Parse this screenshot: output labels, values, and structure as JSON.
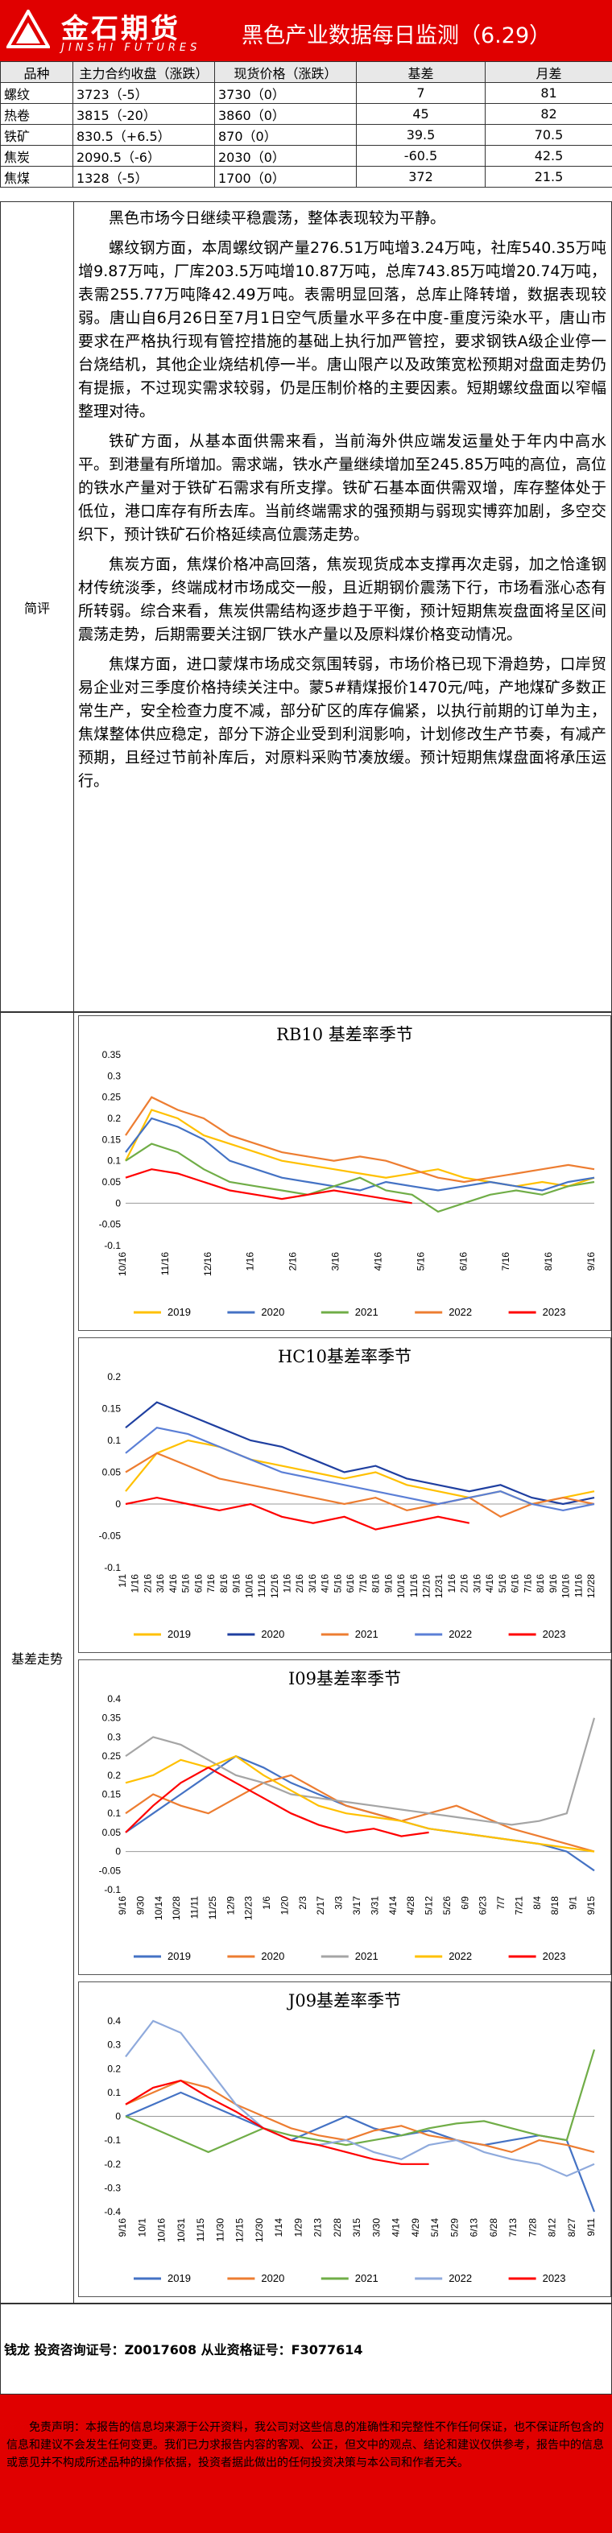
{
  "header": {
    "logo_cn": "金石期货",
    "logo_en": "JINSHI FUTURES",
    "title": "黑色产业数据每日监测（6.29）",
    "brand_color": "#e00000"
  },
  "table": {
    "headers": [
      "品种",
      "主力合约收盘（涨跌）",
      "现货价格（涨跌）",
      "基差",
      "月差"
    ],
    "rows": [
      [
        "螺纹",
        "3723（-5）",
        "3730（0）",
        "7",
        "81"
      ],
      [
        "热卷",
        "3815（-20）",
        "3860（0）",
        "45",
        "82"
      ],
      [
        "铁矿",
        "830.5（+6.5）",
        "870（0）",
        "39.5",
        "70.5"
      ],
      [
        "焦炭",
        "2090.5（-6）",
        "2030（0）",
        "-60.5",
        "42.5"
      ],
      [
        "焦煤",
        "1328（-5）",
        "1700（0）",
        "372",
        "21.5"
      ]
    ]
  },
  "summary": {
    "label": "简评",
    "paragraphs": [
      "黑色市场今日继续平稳震荡，整体表现较为平静。",
      "螺纹钢方面，本周螺纹钢产量276.51万吨增3.24万吨，社库540.35万吨增9.87万吨，厂库203.5万吨增10.87万吨，总库743.85万吨增20.74万吨，表需255.77万吨降42.49万吨。表需明显回落，总库止降转增，数据表现较弱。唐山自6月26日至7月1日空气质量水平多在中度-重度污染水平，唐山市要求在严格执行现有管控措施的基础上执行加严管控，要求钢铁A级企业停一台烧结机，其他企业烧结机停一半。唐山限产以及政策宽松预期对盘面走势仍有提振，不过现实需求较弱，仍是压制价格的主要因素。短期螺纹盘面以窄幅整理对待。",
      "铁矿方面，从基本面供需来看，当前海外供应端发运量处于年内中高水平。到港量有所增加。需求端，铁水产量继续增加至245.85万吨的高位，高位的铁水产量对于铁矿石需求有所支撑。铁矿石基本面供需双增，库存整体处于低位，港口库存有所去库。当前终端需求的强预期与弱现实博弈加剧，多空交织下，预计铁矿石价格延续高位震荡走势。",
      "焦炭方面，焦煤价格冲高回落，焦炭现货成本支撑再次走弱，加之恰逢钢材传统淡季，终端成材市场成交一般，且近期钢价震荡下行，市场看涨心态有所转弱。综合来看，焦炭供需结构逐步趋于平衡，预计短期焦炭盘面将呈区间震荡走势，后期需要关注钢厂铁水产量以及原料煤价格变动情况。",
      "焦煤方面，进口蒙煤市场成交氛围转弱，市场价格已现下滑趋势，口岸贸易企业对三季度价格持续关注中。蒙5#精煤报价1470元/吨，产地煤矿多数正常生产，安全检查力度不减，部分矿区的库存偏紧，以执行前期的订单为主，焦煤整体供应稳定，部分下游企业受到利润影响，计划修改生产节奏，有减产预期，且经过节前补库后，对原料采购节凑放缓。预计短期焦煤盘面将承压运行。"
    ]
  },
  "charts_label": "基差走势",
  "series_colors": {
    "2019": "#ffc000",
    "2020": "#4472c4",
    "2021": "#70ad47",
    "2022": "#ed7d31",
    "2023": "#ff0000"
  },
  "hc10_colors": {
    "2019": "#ffc000",
    "2020": "#1f3fa0",
    "2021": "#ed7d31",
    "2022": "#5b7fd6",
    "2023": "#ff0000"
  },
  "i09_colors": {
    "2019": "#4472c4",
    "2020": "#ed7d31",
    "2021": "#a5a5a5",
    "2022": "#ffc000",
    "2023": "#ff0000"
  },
  "j09_colors": {
    "2019": "#4472c4",
    "2020": "#ed7d31",
    "2021": "#70ad47",
    "2022": "#8faadc",
    "2023": "#ff0000"
  },
  "chart_data": [
    {
      "type": "line",
      "title": "RB10 基差率季节",
      "x_labels": [
        "10/16",
        "11/16",
        "12/16",
        "1/16",
        "2/16",
        "3/16",
        "4/16",
        "5/16",
        "6/16",
        "7/16",
        "8/16",
        "9/16"
      ],
      "ylim": [
        -0.1,
        0.35
      ],
      "yticks": [
        -0.1,
        -0.05,
        0,
        0.05,
        0.1,
        0.15,
        0.2,
        0.25,
        0.3,
        0.35
      ],
      "series": [
        {
          "name": "2019",
          "values": [
            0.1,
            0.22,
            0.2,
            0.16,
            0.14,
            0.12,
            0.1,
            0.09,
            0.08,
            0.07,
            0.06,
            0.07,
            0.08,
            0.06,
            0.05,
            0.04,
            0.05,
            0.04,
            0.06
          ]
        },
        {
          "name": "2020",
          "values": [
            0.12,
            0.2,
            0.18,
            0.15,
            0.1,
            0.08,
            0.06,
            0.05,
            0.04,
            0.03,
            0.05,
            0.04,
            0.03,
            0.04,
            0.05,
            0.04,
            0.03,
            0.05,
            0.06
          ]
        },
        {
          "name": "2021",
          "values": [
            0.1,
            0.14,
            0.12,
            0.08,
            0.05,
            0.04,
            0.03,
            0.02,
            0.04,
            0.06,
            0.03,
            0.02,
            -0.02,
            0.0,
            0.02,
            0.03,
            0.02,
            0.04,
            0.05
          ]
        },
        {
          "name": "2022",
          "values": [
            0.16,
            0.25,
            0.22,
            0.2,
            0.16,
            0.14,
            0.12,
            0.11,
            0.1,
            0.11,
            0.1,
            0.08,
            0.06,
            0.05,
            0.06,
            0.07,
            0.08,
            0.09,
            0.08
          ]
        },
        {
          "name": "2023",
          "values": [
            0.06,
            0.08,
            0.07,
            0.05,
            0.03,
            0.02,
            0.01,
            0.02,
            0.03,
            0.02,
            0.01,
            0.0
          ]
        }
      ]
    },
    {
      "type": "line",
      "title": "HC10基差率季节",
      "x_labels": [
        "1/1",
        "1/16",
        "2/16",
        "3/16",
        "4/16",
        "5/16",
        "6/16",
        "7/16",
        "8/16",
        "9/16",
        "10/16",
        "11/16",
        "12/16",
        "1/16",
        "2/16",
        "3/16",
        "4/16",
        "5/16",
        "6/16",
        "7/16",
        "8/16",
        "9/16",
        "10/16",
        "11/16",
        "12/16",
        "12/31",
        "1/16",
        "2/16",
        "3/16",
        "4/16",
        "5/16",
        "6/16",
        "7/16",
        "8/16",
        "9/16",
        "10/16",
        "11/16",
        "12/28"
      ],
      "ylim": [
        -0.1,
        0.2
      ],
      "yticks": [
        -0.1,
        -0.05,
        0,
        0.05,
        0.1,
        0.15,
        0.2
      ],
      "series": [
        {
          "name": "2019",
          "values": [
            0.02,
            0.08,
            0.1,
            0.09,
            0.07,
            0.06,
            0.05,
            0.04,
            0.05,
            0.03,
            0.02,
            0.01,
            0.02,
            0.0,
            0.01,
            0.02
          ]
        },
        {
          "name": "2020",
          "values": [
            0.12,
            0.16,
            0.14,
            0.12,
            0.1,
            0.09,
            0.07,
            0.05,
            0.06,
            0.04,
            0.03,
            0.02,
            0.03,
            0.01,
            0.0,
            0.01
          ]
        },
        {
          "name": "2021",
          "values": [
            0.05,
            0.08,
            0.06,
            0.04,
            0.03,
            0.02,
            0.01,
            0.0,
            0.01,
            -0.01,
            0.0,
            0.01,
            -0.02,
            0.0,
            0.01,
            0.0
          ]
        },
        {
          "name": "2022",
          "values": [
            0.08,
            0.12,
            0.11,
            0.09,
            0.07,
            0.05,
            0.04,
            0.03,
            0.02,
            0.01,
            0.0,
            0.01,
            0.02,
            0.0,
            -0.01,
            0.0
          ]
        },
        {
          "name": "2023",
          "values": [
            0.0,
            0.01,
            0.0,
            -0.01,
            0.0,
            -0.02,
            -0.03,
            -0.02,
            -0.04,
            -0.03,
            -0.02,
            -0.03
          ]
        }
      ]
    },
    {
      "type": "line",
      "title": "I09基差率季节",
      "x_labels": [
        "9/16",
        "9/30",
        "10/14",
        "10/28",
        "11/11",
        "11/25",
        "12/9",
        "12/23",
        "1/6",
        "1/20",
        "2/3",
        "2/17",
        "3/3",
        "3/17",
        "3/31",
        "4/14",
        "4/28",
        "5/12",
        "5/26",
        "6/9",
        "6/23",
        "7/7",
        "7/21",
        "8/4",
        "8/18",
        "9/1",
        "9/15"
      ],
      "ylim": [
        -0.1,
        0.4
      ],
      "yticks": [
        -0.1,
        -0.05,
        0,
        0.05,
        0.1,
        0.15,
        0.2,
        0.25,
        0.3,
        0.35,
        0.4
      ],
      "series": [
        {
          "name": "2019",
          "values": [
            0.05,
            0.1,
            0.15,
            0.2,
            0.25,
            0.22,
            0.18,
            0.15,
            0.12,
            0.1,
            0.08,
            0.06,
            0.05,
            0.04,
            0.03,
            0.02,
            0.0,
            -0.05
          ]
        },
        {
          "name": "2020",
          "values": [
            0.1,
            0.15,
            0.12,
            0.1,
            0.14,
            0.18,
            0.2,
            0.16,
            0.12,
            0.1,
            0.08,
            0.1,
            0.12,
            0.09,
            0.06,
            0.04,
            0.02,
            0.0
          ]
        },
        {
          "name": "2021",
          "values": [
            0.25,
            0.3,
            0.28,
            0.24,
            0.2,
            0.18,
            0.15,
            0.14,
            0.13,
            0.12,
            0.11,
            0.1,
            0.09,
            0.08,
            0.07,
            0.08,
            0.1,
            0.35
          ]
        },
        {
          "name": "2022",
          "values": [
            0.18,
            0.2,
            0.24,
            0.22,
            0.25,
            0.2,
            0.16,
            0.12,
            0.1,
            0.09,
            0.08,
            0.06,
            0.05,
            0.04,
            0.03,
            0.02,
            0.01,
            0.0
          ]
        },
        {
          "name": "2023",
          "values": [
            0.05,
            0.12,
            0.18,
            0.22,
            0.18,
            0.14,
            0.1,
            0.07,
            0.05,
            0.06,
            0.04,
            0.05
          ]
        }
      ]
    },
    {
      "type": "line",
      "title": "J09基差率季节",
      "x_labels": [
        "9/16",
        "10/1",
        "10/16",
        "10/31",
        "11/15",
        "11/30",
        "12/15",
        "12/30",
        "1/14",
        "1/29",
        "2/13",
        "2/28",
        "3/15",
        "3/30",
        "4/14",
        "4/29",
        "5/14",
        "5/29",
        "6/13",
        "6/28",
        "7/13",
        "7/28",
        "8/12",
        "8/27",
        "9/11"
      ],
      "ylim": [
        -0.4,
        0.4
      ],
      "yticks": [
        -0.4,
        -0.3,
        -0.2,
        -0.1,
        0,
        0.1,
        0.2,
        0.3,
        0.4
      ],
      "series": [
        {
          "name": "2019",
          "values": [
            0.0,
            0.05,
            0.1,
            0.05,
            0.0,
            -0.05,
            -0.1,
            -0.05,
            0.0,
            -0.05,
            -0.08,
            -0.06,
            -0.1,
            -0.12,
            -0.1,
            -0.08,
            -0.1,
            -0.4
          ]
        },
        {
          "name": "2020",
          "values": [
            0.05,
            0.1,
            0.15,
            0.12,
            0.05,
            0.0,
            -0.05,
            -0.08,
            -0.1,
            -0.06,
            -0.04,
            -0.08,
            -0.1,
            -0.12,
            -0.15,
            -0.1,
            -0.12,
            -0.15
          ]
        },
        {
          "name": "2021",
          "values": [
            0.0,
            -0.05,
            -0.1,
            -0.15,
            -0.1,
            -0.05,
            -0.08,
            -0.1,
            -0.12,
            -0.1,
            -0.08,
            -0.05,
            -0.03,
            -0.02,
            -0.05,
            -0.08,
            -0.1,
            0.28
          ]
        },
        {
          "name": "2022",
          "values": [
            0.25,
            0.4,
            0.35,
            0.2,
            0.05,
            -0.05,
            -0.1,
            -0.12,
            -0.1,
            -0.15,
            -0.18,
            -0.12,
            -0.1,
            -0.15,
            -0.18,
            -0.2,
            -0.25,
            -0.2
          ]
        },
        {
          "name": "2023",
          "values": [
            0.05,
            0.12,
            0.15,
            0.08,
            0.02,
            -0.05,
            -0.1,
            -0.12,
            -0.15,
            -0.18,
            -0.2,
            -0.2
          ]
        }
      ]
    }
  ],
  "analyst": "钱龙 投资咨询证号：Z0017608 从业资格证号：F3077614",
  "disclaimer": "免责声明：本报告的信息均来源于公开资料，我公司对这些信息的准确性和完整性不作任何保证，也不保证所包含的信息和建议不会发生任何变更。我们已力求报告内容的客观、公正，但文中的观点、结论和建议仅供参考，报告中的信息或意见并不构成所述品种的操作依据，投资者据此做出的任何投资决策与本公司和作者无关。"
}
